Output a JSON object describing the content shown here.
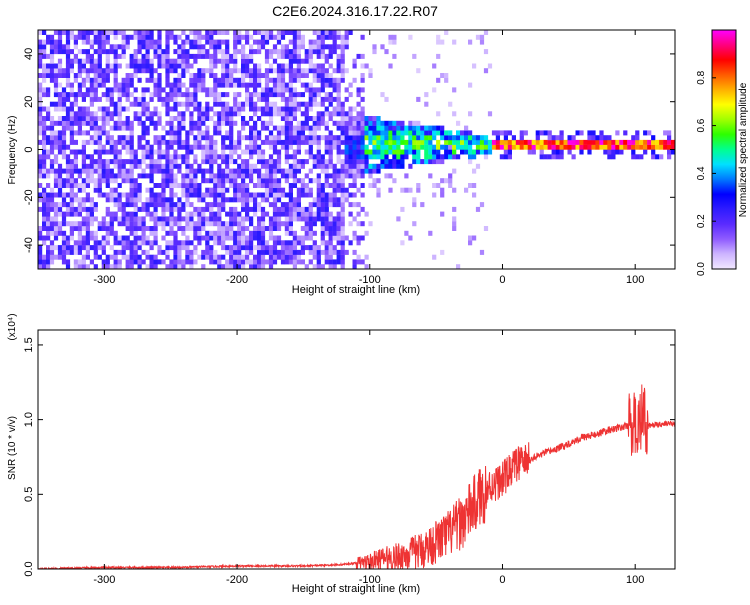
{
  "title": "C2E6.2024.316.17.22.R07",
  "chart_data": [
    {
      "type": "heatmap",
      "xlabel": "Height of straight line (km)",
      "ylabel": "Frequency (Hz)",
      "xlim": [
        -350,
        130
      ],
      "ylim": [
        -50,
        50
      ],
      "x_ticks": [
        -300,
        -200,
        -100,
        0,
        100
      ],
      "y_ticks": [
        -40,
        -20,
        0,
        20,
        40
      ],
      "colorbar": {
        "label": "Normalized spectral amplitude",
        "range": [
          0,
          1
        ],
        "ticks": [
          "0.0",
          "0.2",
          "0.4",
          "0.6",
          "0.8"
        ],
        "colors": [
          "#f2e8ff",
          "#cdb4ff",
          "#8f5cff",
          "#5a2bff",
          "#2f1cff",
          "#0000ff",
          "#0078ff",
          "#00e0ff",
          "#00ff90",
          "#2dff00",
          "#a0ff00",
          "#ffff00",
          "#ffb000",
          "#ff5a00",
          "#ff0000",
          "#ff0080",
          "#ff00ff"
        ]
      },
      "regions": [
        {
          "x_range": [
            -350,
            -120
          ],
          "freq_range": [
            -50,
            50
          ],
          "amplitude": [
            0.05,
            0.25
          ],
          "pattern": "noise"
        },
        {
          "x_range": [
            -120,
            -10
          ],
          "freq_range": [
            -12,
            12
          ],
          "amplitude": [
            0.15,
            0.55
          ],
          "pattern": "converging"
        },
        {
          "x_range": [
            -10,
            130
          ],
          "freq_range": [
            0,
            3
          ],
          "amplitude": [
            0.7,
            1.0
          ],
          "pattern": "line"
        }
      ],
      "grid": false
    },
    {
      "type": "line",
      "xlabel": "Height of straight line (km)",
      "ylabel": "SNR (10 * v/v)",
      "y_multiplier": "(x10⁴)",
      "xlim": [
        -350,
        130
      ],
      "ylim": [
        0,
        1.6
      ],
      "x_ticks": [
        -300,
        -200,
        -100,
        0,
        100
      ],
      "y_ticks": [
        "0.0",
        "0.5",
        "1.0",
        "1.5"
      ],
      "series_color": "#ee3333",
      "x": [
        -350,
        -300,
        -250,
        -200,
        -150,
        -120,
        -100,
        -90,
        -80,
        -70,
        -60,
        -50,
        -40,
        -30,
        -20,
        -10,
        0,
        10,
        20,
        30,
        40,
        50,
        60,
        70,
        80,
        90,
        100,
        105,
        110,
        120,
        130
      ],
      "y": [
        0.0,
        0.01,
        0.01,
        0.02,
        0.02,
        0.03,
        0.05,
        0.07,
        0.08,
        0.1,
        0.13,
        0.18,
        0.24,
        0.32,
        0.45,
        0.55,
        0.6,
        0.7,
        0.73,
        0.77,
        0.8,
        0.84,
        0.88,
        0.9,
        0.93,
        0.95,
        0.97,
        1.02,
        0.96,
        0.97,
        0.97
      ]
    }
  ]
}
